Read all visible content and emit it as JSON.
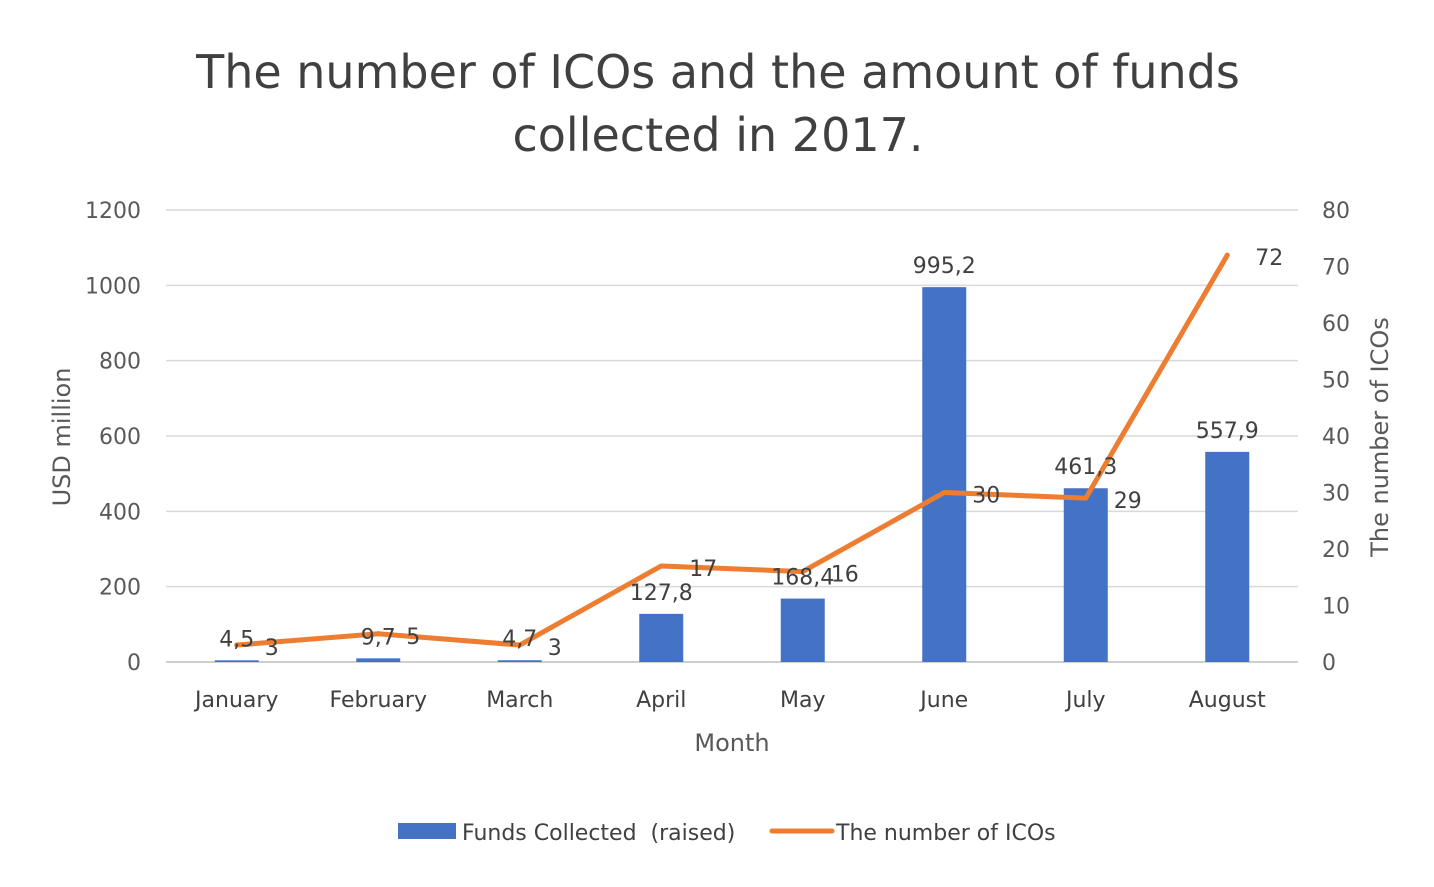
{
  "chart_data": {
    "type": "bar+line",
    "title": "The number of ICOs and the amount of funds collected in 2017.",
    "title_lines": [
      "The number of ICOs and the amount of funds",
      "collected in 2017."
    ],
    "xlabel": "Month",
    "ylabel_left": "USD million",
    "ylabel_right": "The number of ICOs",
    "categories": [
      "January",
      "February",
      "March",
      "April",
      "May",
      "June",
      "July",
      "August"
    ],
    "series": [
      {
        "name": "Funds Collected  (raised)",
        "type": "bar",
        "axis": "left",
        "color": "#4472C4",
        "values": [
          4.5,
          9.7,
          4.7,
          127.8,
          168.4,
          995.2,
          461.3,
          557.9
        ],
        "labels": [
          "4,5",
          "9,7",
          "4,7",
          "127,8",
          "168,4",
          "995,2",
          "461,3",
          "557,9"
        ]
      },
      {
        "name": "The number of ICOs",
        "type": "line",
        "axis": "right",
        "color": "#ED7D31",
        "values": [
          3,
          5,
          3,
          17,
          16,
          30,
          29,
          72
        ],
        "labels": [
          "3",
          "5",
          "3",
          "17",
          "16",
          "30",
          "29",
          "72"
        ]
      }
    ],
    "ylim_left": [
      0,
      1200
    ],
    "yticks_left": [
      "0",
      "200",
      "400",
      "600",
      "800",
      "1000",
      "1200"
    ],
    "ylim_right": [
      0,
      80
    ],
    "yticks_right": [
      "0",
      "10",
      "20",
      "30",
      "40",
      "50",
      "60",
      "70",
      "80"
    ],
    "grid": true,
    "legend_position": "bottom"
  }
}
